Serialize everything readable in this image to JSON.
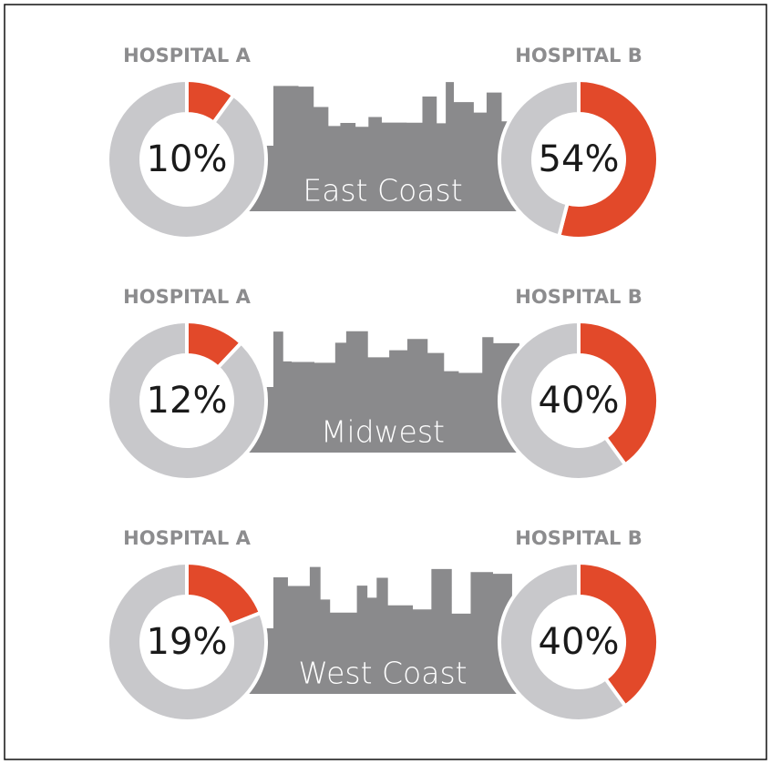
{
  "chart_data": [
    {
      "type": "donut",
      "title": "East Coast",
      "colors": [
        "#e2492a",
        "#c8c8cb"
      ],
      "donuts": [
        {
          "name": "HOSPITAL A",
          "values": [
            10,
            90
          ],
          "value_label": "10%"
        },
        {
          "name": "HOSPITAL B",
          "values": [
            54,
            46
          ],
          "value_label": "54%"
        }
      ]
    },
    {
      "type": "donut",
      "title": "Midwest",
      "colors": [
        "#e2492a",
        "#c8c8cb"
      ],
      "donuts": [
        {
          "name": "HOSPITAL A",
          "values": [
            12,
            88
          ],
          "value_label": "12%"
        },
        {
          "name": "HOSPITAL B",
          "values": [
            40,
            60
          ],
          "value_label": "40%"
        }
      ]
    },
    {
      "type": "donut",
      "title": "West Coast",
      "colors": [
        "#e2492a",
        "#c8c8cb"
      ],
      "donuts": [
        {
          "name": "HOSPITAL A",
          "values": [
            19,
            81
          ],
          "value_label": "19%"
        },
        {
          "name": "HOSPITAL B",
          "values": [
            40,
            60
          ],
          "value_label": "40%"
        }
      ]
    }
  ]
}
